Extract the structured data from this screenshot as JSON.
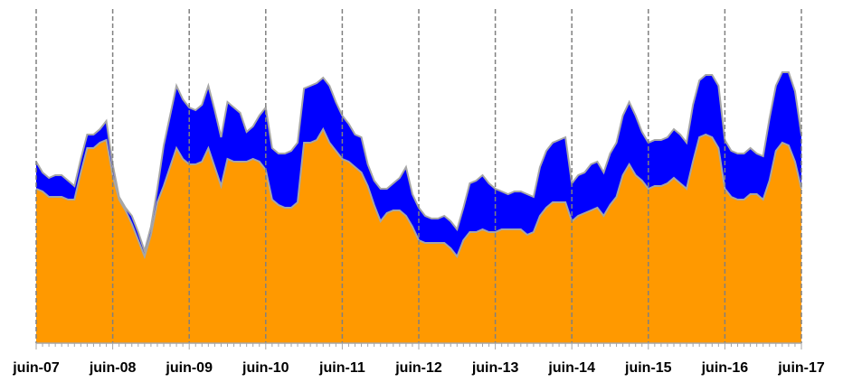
{
  "chart_data": {
    "type": "stacked_area",
    "categories": [
      "juin-07",
      null,
      null,
      null,
      null,
      null,
      null,
      null,
      null,
      null,
      null,
      null,
      "juin-08",
      null,
      null,
      null,
      null,
      null,
      null,
      null,
      null,
      null,
      null,
      null,
      "juin-09",
      null,
      null,
      null,
      null,
      null,
      null,
      null,
      null,
      null,
      null,
      null,
      "juin-10",
      null,
      null,
      null,
      null,
      null,
      null,
      null,
      null,
      null,
      null,
      null,
      "juin-11",
      null,
      null,
      null,
      null,
      null,
      null,
      null,
      null,
      null,
      null,
      null,
      "juin-12",
      null,
      null,
      null,
      null,
      null,
      null,
      null,
      null,
      null,
      null,
      null,
      "juin-13",
      null,
      null,
      null,
      null,
      null,
      null,
      null,
      null,
      null,
      null,
      null,
      "juin-14",
      null,
      null,
      null,
      null,
      null,
      null,
      null,
      null,
      null,
      null,
      null,
      "juin-15",
      null,
      null,
      null,
      null,
      null,
      null,
      null,
      null,
      null,
      null,
      null,
      "juin-16",
      null,
      null,
      null,
      null,
      null,
      null,
      null,
      null,
      null,
      null,
      null,
      "juin-17"
    ],
    "series": [
      {
        "color": "#ff9900",
        "values": [
          57,
          56,
          54,
          54,
          54,
          53,
          53,
          63,
          72,
          72,
          74,
          75,
          62,
          53,
          49,
          44,
          38,
          32,
          40,
          52,
          58,
          65,
          72,
          68,
          66,
          66,
          67,
          72,
          65,
          58,
          68,
          67,
          67,
          67,
          68,
          67,
          64,
          53,
          51,
          50,
          50,
          52,
          74,
          74,
          75,
          79,
          74,
          71,
          68,
          67,
          65,
          63,
          58,
          51,
          45,
          48,
          49,
          49,
          47,
          43,
          38,
          37,
          37,
          37,
          37,
          35,
          32,
          38,
          41,
          41,
          42,
          41,
          41,
          42,
          42,
          42,
          42,
          40,
          41,
          47,
          50,
          52,
          52,
          52,
          45,
          47,
          48,
          49,
          50,
          47,
          51,
          54,
          62,
          66,
          62,
          60,
          57,
          58,
          58,
          59,
          61,
          59,
          57,
          67,
          76,
          77,
          76,
          72,
          57,
          54,
          53,
          53,
          55,
          55,
          53,
          60,
          71,
          74,
          73,
          67,
          57
        ]
      },
      {
        "color": "#0000ff",
        "values": [
          10,
          7,
          7,
          8,
          8,
          7,
          5,
          5,
          5,
          5,
          5,
          7,
          4,
          1,
          1,
          3,
          3,
          2,
          3,
          5,
          15,
          19,
          23,
          22,
          21,
          20,
          21,
          23,
          21,
          18,
          21,
          20,
          18,
          11,
          12,
          17,
          23,
          19,
          19,
          20,
          21,
          22,
          20,
          21,
          21,
          19,
          21,
          18,
          16,
          14,
          12,
          13,
          8,
          9,
          12,
          9,
          10,
          12,
          18,
          12,
          12,
          10,
          9,
          9,
          10,
          10,
          10,
          12,
          18,
          19,
          20,
          18,
          16,
          14,
          13,
          14,
          14,
          15,
          13,
          18,
          21,
          22,
          23,
          24,
          14,
          15,
          15,
          17,
          17,
          16,
          19,
          20,
          22,
          23,
          22,
          18,
          17,
          17,
          17,
          17,
          18,
          18,
          17,
          21,
          21,
          22,
          23,
          23,
          18,
          17,
          17,
          17,
          17,
          15,
          16,
          23,
          24,
          26,
          27,
          26,
          20
        ]
      }
    ],
    "ylim": [
      0,
      120
    ],
    "vgrid": true
  }
}
